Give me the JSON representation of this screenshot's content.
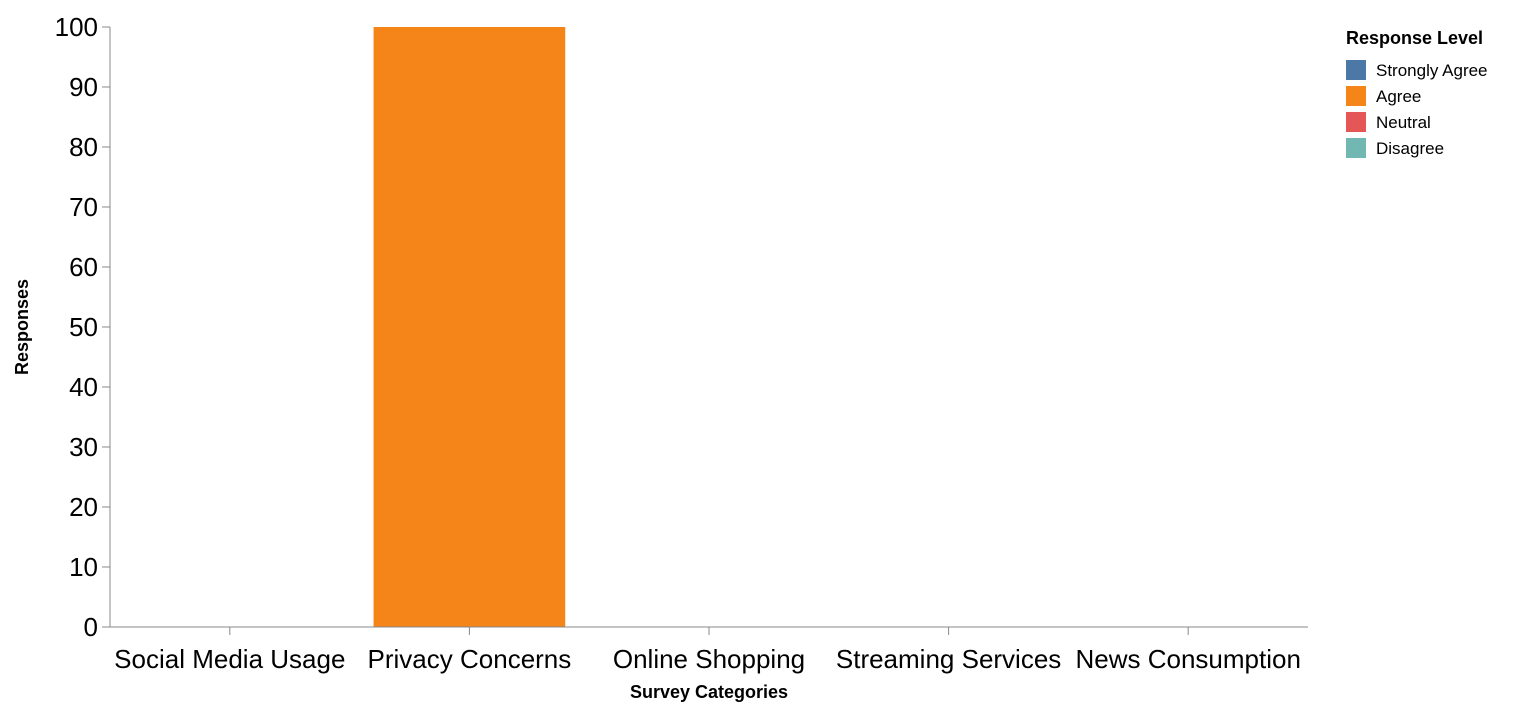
{
  "chart_data": {
    "type": "bar",
    "categories": [
      "Social Media Usage",
      "Privacy Concerns",
      "Online Shopping",
      "Streaming Services",
      "News Consumption"
    ],
    "series": [
      {
        "name": "Strongly Agree",
        "color": "#4c78a8",
        "values": [
          0,
          0,
          0,
          0,
          0
        ]
      },
      {
        "name": "Agree",
        "color": "#f58518",
        "values": [
          0,
          100,
          0,
          0,
          0
        ]
      },
      {
        "name": "Neutral",
        "color": "#e45756",
        "values": [
          0,
          0,
          0,
          0,
          0
        ]
      },
      {
        "name": "Disagree",
        "color": "#72b7b2",
        "values": [
          0,
          0,
          0,
          0,
          0
        ]
      }
    ],
    "xlabel": "Survey Categories",
    "ylabel": "Responses",
    "ylim": [
      0,
      100
    ],
    "yticks": [
      0,
      10,
      20,
      30,
      40,
      50,
      60,
      70,
      80,
      90,
      100
    ],
    "stacked": true,
    "grid": false,
    "legend": {
      "title": "Response Level",
      "position": "top-right"
    }
  }
}
